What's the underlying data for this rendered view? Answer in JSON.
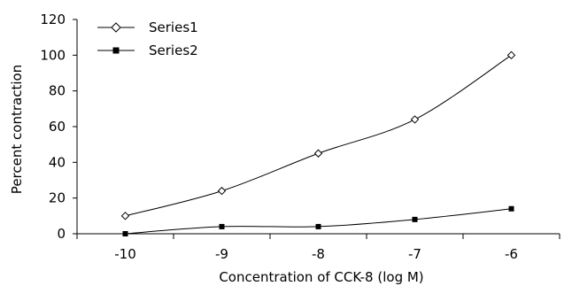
{
  "chart_data": {
    "type": "line",
    "title": "",
    "xlabel": "Concentration of CCK-8 (log M)",
    "ylabel": "Percent contraction",
    "x": [
      -10,
      -9,
      -8,
      -7,
      -6
    ],
    "xlim": [
      -10.5,
      -5.5
    ],
    "ylim": [
      0,
      120
    ],
    "yticks": [
      0,
      20,
      40,
      60,
      80,
      100,
      120
    ],
    "grid": false,
    "legend_position": "top-left",
    "series": [
      {
        "name": "Series1",
        "marker": "open-diamond",
        "values": [
          10,
          24,
          45,
          64,
          100
        ]
      },
      {
        "name": "Series2",
        "marker": "filled-square",
        "values": [
          0,
          4,
          4,
          8,
          14
        ]
      }
    ]
  }
}
